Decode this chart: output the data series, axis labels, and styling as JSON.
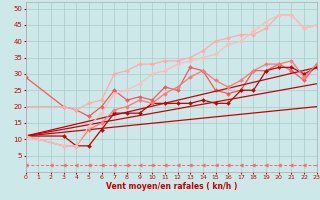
{
  "xlabel": "Vent moyen/en rafales ( kn/h )",
  "xlim": [
    0,
    23
  ],
  "ylim": [
    0,
    52
  ],
  "yticks": [
    5,
    10,
    15,
    20,
    25,
    30,
    35,
    40,
    45,
    50
  ],
  "xticks": [
    0,
    1,
    2,
    3,
    4,
    5,
    6,
    7,
    8,
    9,
    10,
    11,
    12,
    13,
    14,
    15,
    16,
    17,
    18,
    19,
    20,
    21,
    22,
    23
  ],
  "bg_color": "#cce8e8",
  "grid_color": "#aacccc",
  "series": [
    {
      "x": [
        0,
        3,
        4,
        5,
        6,
        7,
        8,
        9,
        10,
        11,
        12,
        13,
        14,
        15,
        16,
        17,
        18,
        19,
        20,
        21,
        22,
        23
      ],
      "y": [
        29,
        20,
        19,
        17,
        20,
        25,
        22,
        23,
        22,
        26,
        25,
        32,
        31,
        25,
        24,
        25,
        31,
        31,
        33,
        31,
        28,
        33
      ],
      "color": "#ff5555",
      "lw": 0.9,
      "marker": "D",
      "ms": 2.0
    },
    {
      "x": [
        0,
        3,
        4,
        5,
        6,
        7,
        8,
        9,
        10,
        11,
        12,
        13,
        14,
        15,
        16,
        17,
        18,
        19,
        20,
        21,
        22,
        23
      ],
      "y": [
        11,
        11,
        8,
        8,
        13,
        18,
        18,
        18,
        21,
        21,
        21,
        21,
        22,
        21,
        21,
        25,
        25,
        31,
        32,
        32,
        30,
        32
      ],
      "color": "#cc0000",
      "lw": 0.9,
      "marker": "D",
      "ms": 2.0
    },
    {
      "x": [
        0,
        23
      ],
      "y": [
        11,
        32
      ],
      "color": "#cc0000",
      "lw": 0.9,
      "marker": null,
      "ms": 0
    },
    {
      "x": [
        0,
        23
      ],
      "y": [
        11,
        27
      ],
      "color": "#cc0000",
      "lw": 0.9,
      "marker": null,
      "ms": 0
    },
    {
      "x": [
        0,
        23
      ],
      "y": [
        11,
        20
      ],
      "color": "#cc0000",
      "lw": 0.9,
      "marker": null,
      "ms": 0
    },
    {
      "x": [
        0,
        3,
        4,
        5,
        6,
        7,
        8,
        9,
        10,
        11,
        12,
        13,
        14,
        15,
        16,
        17,
        18,
        19,
        20,
        21,
        22,
        23
      ],
      "y": [
        11,
        8,
        8,
        13,
        15,
        19,
        20,
        22,
        21,
        24,
        26,
        29,
        31,
        28,
        26,
        28,
        31,
        33,
        33,
        34,
        29,
        33
      ],
      "color": "#ff7777",
      "lw": 0.9,
      "marker": "D",
      "ms": 2.0
    },
    {
      "x": [
        0,
        3,
        4,
        5,
        6,
        7,
        8,
        9,
        10,
        11,
        12,
        13,
        14,
        15,
        16,
        17,
        18,
        19,
        20,
        21,
        22,
        23
      ],
      "y": [
        20,
        20,
        19,
        21,
        22,
        30,
        31,
        33,
        33,
        34,
        34,
        35,
        37,
        40,
        41,
        42,
        42,
        44,
        48,
        48,
        44,
        45
      ],
      "color": "#ffaaaa",
      "lw": 0.9,
      "marker": "D",
      "ms": 2.0
    },
    {
      "x": [
        0,
        3,
        4,
        5,
        6,
        7,
        8,
        9,
        10,
        11,
        12,
        13,
        14,
        15,
        16,
        17,
        18,
        19,
        20,
        21,
        22,
        23
      ],
      "y": [
        11,
        8,
        8,
        14,
        18,
        24,
        25,
        27,
        30,
        31,
        33,
        34,
        35,
        36,
        39,
        40,
        43,
        46,
        48,
        48,
        44,
        45
      ],
      "color": "#ffbbbb",
      "lw": 0.9,
      "marker": "D",
      "ms": 2.0
    },
    {
      "x": [
        0,
        2,
        3,
        4,
        5,
        6,
        7,
        8,
        9,
        10,
        11,
        12,
        13,
        14,
        15,
        16,
        17,
        18,
        19,
        20,
        21,
        22,
        23
      ],
      "y": [
        2,
        2,
        2,
        2,
        2,
        2,
        2,
        2,
        2,
        2,
        2,
        2,
        2,
        2,
        2,
        2,
        2,
        2,
        2,
        2,
        2,
        2,
        2
      ],
      "color": "#ff6666",
      "lw": 0.7,
      "marker": "<",
      "ms": 2.5,
      "dashed": true
    }
  ]
}
